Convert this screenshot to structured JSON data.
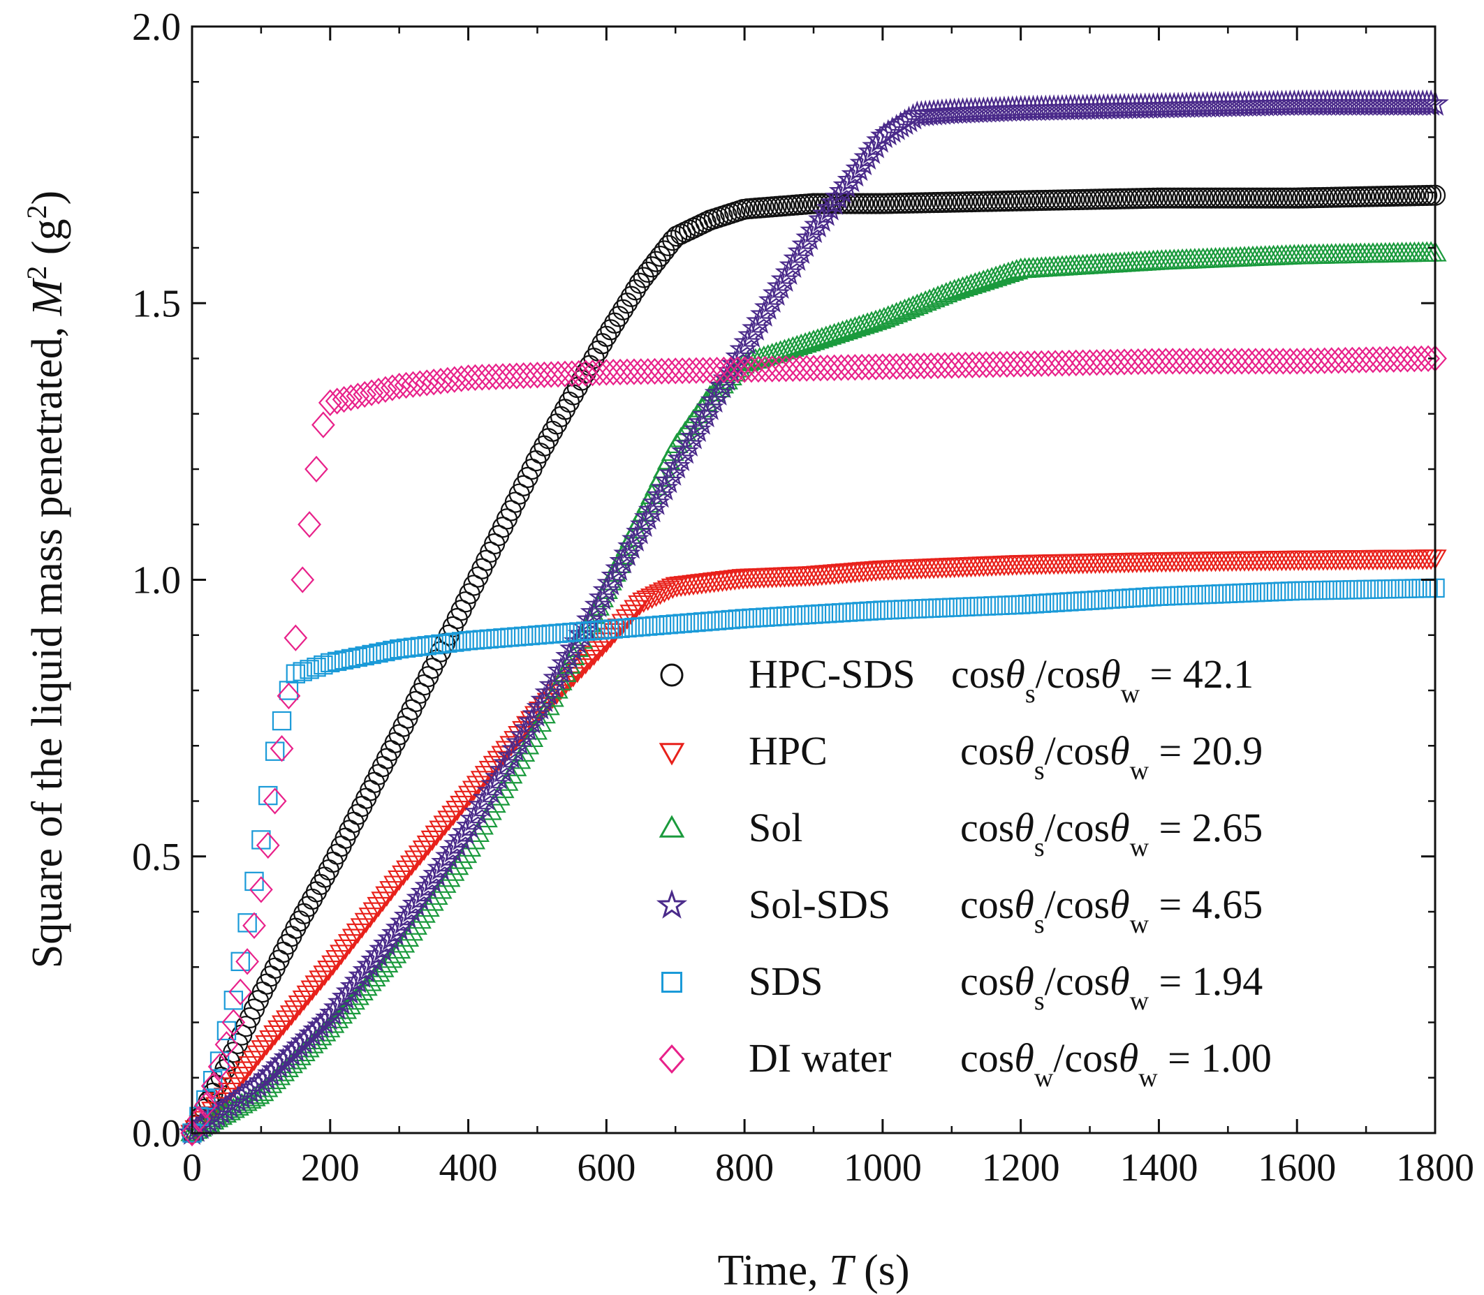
{
  "chart_data": {
    "type": "scatter",
    "xlabel": {
      "prefix": "Time, ",
      "var": "T",
      "suffix": " (s)"
    },
    "ylabel": {
      "prefix": "Square of the liquid mass penetrated, ",
      "var": "M",
      "sup": "2",
      "suffix": " (g",
      "sup2": "2",
      "end": ")"
    },
    "xlim": [
      0,
      1800
    ],
    "ylim": [
      0,
      2.0
    ],
    "xticks": [
      0,
      200,
      400,
      600,
      800,
      1000,
      1200,
      1400,
      1600,
      1800
    ],
    "xtick_labels": [
      "0",
      "200",
      "400",
      "600",
      "800",
      "1000",
      "1200",
      "1400",
      "1600",
      "1800"
    ],
    "yticks": [
      0,
      0.5,
      1.0,
      1.5,
      2.0
    ],
    "ytick_labels": [
      "0.0",
      "0.5",
      "1.0",
      "1.5",
      "2.0"
    ],
    "grid": false,
    "legend_position": "lower-right",
    "series": [
      {
        "name": "HPC-SDS",
        "marker": "circle",
        "color": "#111111",
        "ratio_num": "s",
        "ratio_value": "42.1",
        "x": [
          0,
          50,
          100,
          150,
          200,
          300,
          400,
          500,
          600,
          650,
          700,
          750,
          800,
          900,
          1000,
          1200,
          1400,
          1600,
          1800
        ],
        "y": [
          0,
          0.12,
          0.25,
          0.37,
          0.48,
          0.72,
          0.97,
          1.22,
          1.44,
          1.54,
          1.62,
          1.65,
          1.67,
          1.68,
          1.68,
          1.685,
          1.69,
          1.69,
          1.695
        ]
      },
      {
        "name": "HPC",
        "marker": "triangle-down",
        "color": "#e8211b",
        "ratio_num": "s",
        "ratio_value": "20.9",
        "x": [
          0,
          50,
          100,
          200,
          300,
          400,
          500,
          600,
          650,
          700,
          800,
          900,
          1000,
          1200,
          1400,
          1600,
          1800
        ],
        "y": [
          0,
          0.07,
          0.15,
          0.3,
          0.46,
          0.61,
          0.76,
          0.89,
          0.96,
          0.99,
          1.005,
          1.01,
          1.02,
          1.03,
          1.035,
          1.038,
          1.04
        ]
      },
      {
        "name": "Sol",
        "marker": "triangle-up",
        "color": "#1a9a3c",
        "ratio_num": "s",
        "ratio_value": "2.65",
        "x": [
          0,
          100,
          200,
          300,
          400,
          500,
          600,
          700,
          750,
          800,
          900,
          1000,
          1100,
          1200,
          1400,
          1600,
          1800
        ],
        "y": [
          0,
          0.07,
          0.19,
          0.33,
          0.51,
          0.73,
          0.98,
          1.24,
          1.33,
          1.39,
          1.43,
          1.47,
          1.52,
          1.56,
          1.575,
          1.585,
          1.59
        ]
      },
      {
        "name": "Sol-SDS",
        "marker": "star",
        "color": "#4a2a8a",
        "ratio_num": "s",
        "ratio_value": "4.65",
        "x": [
          0,
          100,
          200,
          300,
          400,
          500,
          600,
          700,
          800,
          900,
          1000,
          1050,
          1100,
          1200,
          1400,
          1600,
          1800
        ],
        "y": [
          0,
          0.09,
          0.21,
          0.37,
          0.55,
          0.76,
          0.98,
          1.2,
          1.42,
          1.63,
          1.8,
          1.84,
          1.845,
          1.85,
          1.855,
          1.86,
          1.86
        ]
      },
      {
        "name": "SDS",
        "marker": "square",
        "color": "#1a9ad8",
        "ratio_num": "s",
        "ratio_value": "1.94",
        "x": [
          0,
          20,
          40,
          60,
          80,
          100,
          120,
          140,
          150,
          200,
          300,
          400,
          500,
          600,
          800,
          1000,
          1200,
          1400,
          1600,
          1800
        ],
        "y": [
          0,
          0.06,
          0.13,
          0.24,
          0.38,
          0.53,
          0.69,
          0.8,
          0.83,
          0.85,
          0.875,
          0.89,
          0.9,
          0.91,
          0.93,
          0.945,
          0.955,
          0.97,
          0.98,
          0.985
        ]
      },
      {
        "name": "DI water",
        "marker": "diamond",
        "color": "#e8218a",
        "ratio_num": "w",
        "ratio_value": "1.00",
        "x": [
          0,
          20,
          40,
          60,
          80,
          100,
          120,
          140,
          160,
          180,
          190,
          200,
          300,
          400,
          500,
          600,
          800,
          1000,
          1200,
          1400,
          1600,
          1800
        ],
        "y": [
          0,
          0.05,
          0.12,
          0.2,
          0.31,
          0.44,
          0.6,
          0.79,
          1.0,
          1.2,
          1.28,
          1.32,
          1.35,
          1.365,
          1.37,
          1.375,
          1.38,
          1.385,
          1.39,
          1.395,
          1.395,
          1.4
        ]
      }
    ]
  }
}
